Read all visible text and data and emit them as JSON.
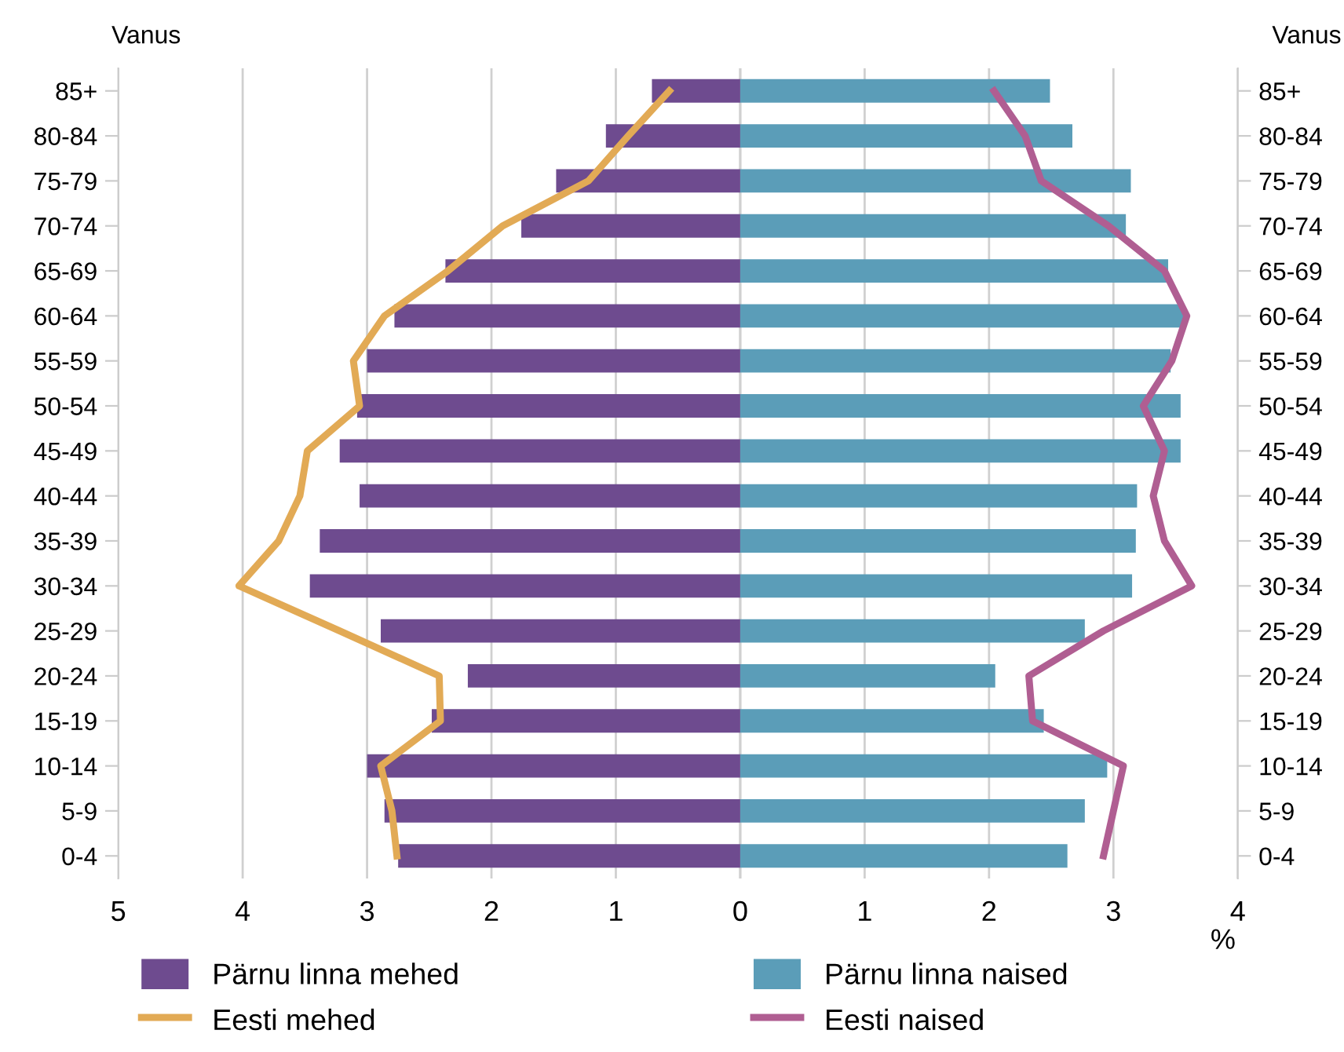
{
  "chart_data": {
    "type": "bar",
    "orientation": "horizontal",
    "ylabel": "Vanus",
    "y2label": "Vanus",
    "xlabel": "%",
    "categories": [
      "85+",
      "80-84",
      "75-79",
      "70-74",
      "65-69",
      "60-64",
      "55-59",
      "50-54",
      "45-49",
      "40-44",
      "35-39",
      "30-34",
      "25-29",
      "20-24",
      "15-19",
      "10-14",
      "5-9",
      "0-4"
    ],
    "series": [
      {
        "name": "Pärnu linna mehed",
        "color": "#6e4b8f",
        "values": [
          -0.71,
          -1.08,
          -1.48,
          -1.76,
          -2.37,
          -2.78,
          -3.0,
          -3.08,
          -3.22,
          -3.06,
          -3.38,
          -3.46,
          -2.89,
          -2.19,
          -2.48,
          -3.0,
          -2.86,
          -2.75
        ]
      },
      {
        "name": "Pärnu linna naised",
        "color": "#5b9db8",
        "values": [
          2.49,
          2.67,
          3.14,
          3.1,
          3.44,
          3.56,
          3.46,
          3.54,
          3.54,
          3.19,
          3.18,
          3.15,
          2.77,
          2.05,
          2.44,
          2.95,
          2.77,
          2.63
        ]
      },
      {
        "name": "Eesti mehed",
        "type": "line",
        "color": "#e2aa55",
        "values": [
          -0.57,
          -0.9,
          -1.22,
          -1.91,
          -2.35,
          -2.86,
          -3.11,
          -3.06,
          -3.48,
          -3.54,
          -3.71,
          -4.03,
          -3.22,
          -2.42,
          -2.41,
          -2.89,
          -2.8,
          -2.76
        ]
      },
      {
        "name": "Eesti naised",
        "type": "line",
        "color": "#b05e92",
        "values": [
          2.04,
          2.29,
          2.42,
          2.96,
          3.41,
          3.59,
          3.47,
          3.24,
          3.41,
          3.32,
          3.41,
          3.63,
          2.92,
          2.32,
          2.35,
          3.08,
          3.0,
          2.92
        ]
      }
    ],
    "xlim": [
      -5,
      4
    ],
    "xticks": [
      {
        "value": -5,
        "label": "5"
      },
      {
        "value": -4,
        "label": "4"
      },
      {
        "value": -3,
        "label": "3"
      },
      {
        "value": -2,
        "label": "2"
      },
      {
        "value": -1,
        "label": "1"
      },
      0,
      1,
      2,
      3,
      4
    ],
    "stacked": true,
    "grid": "x",
    "legend": "bottom",
    "line_style": "solid",
    "marker": "none"
  }
}
